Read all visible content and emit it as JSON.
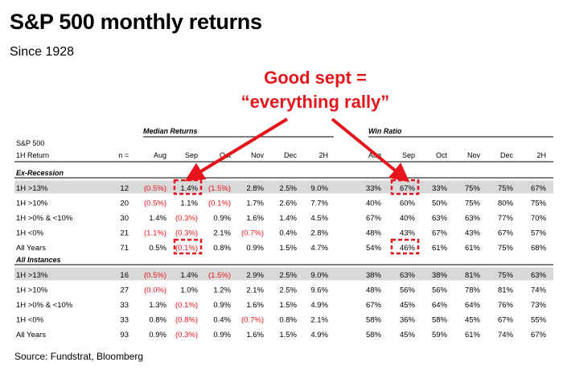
{
  "title": "S&P 500 monthly returns",
  "subtitle": "Since 1928",
  "callout": {
    "line1": "Good sept =",
    "line2": "“everything rally”"
  },
  "source": "Source: Fundstrat, Bloomberg",
  "colors": {
    "negative": "#e8141b",
    "highlight_row": "#d9d9d9",
    "accent": "#e8141b"
  },
  "chart_data": {
    "type": "table",
    "row_header_label": [
      "S&P 500",
      "1H Return"
    ],
    "n_label": "n =",
    "group_headers": {
      "median": "Median Returns",
      "win": "Win Ratio"
    },
    "median_columns": [
      "Aug",
      "Sep",
      "Oct",
      "Nov",
      "Dec",
      "2H"
    ],
    "win_columns": [
      "Aug",
      "Sep",
      "Oct",
      "Nov",
      "Dec",
      "2H"
    ],
    "sections": [
      {
        "name": "Ex-Recession",
        "rows": [
          {
            "label": "1H >13%",
            "n": "12",
            "shaded": true,
            "median": [
              "(0.5%)",
              "1.4%",
              "(1.5%)",
              "2.8%",
              "2.5%",
              "9.0%"
            ],
            "win": [
              "33%",
              "67%",
              "33%",
              "75%",
              "75%",
              "67%"
            ]
          },
          {
            "label": "1H >10%",
            "n": "20",
            "shaded": false,
            "median": [
              "(0.5%)",
              "1.1%",
              "(0.1%)",
              "1.7%",
              "2.6%",
              "7.7%"
            ],
            "win": [
              "40%",
              "60%",
              "50%",
              "75%",
              "80%",
              "75%"
            ]
          },
          {
            "label": "1H >0% & <10%",
            "n": "30",
            "shaded": false,
            "median": [
              "1.4%",
              "(0.3%)",
              "0.9%",
              "1.6%",
              "1.4%",
              "4.5%"
            ],
            "win": [
              "67%",
              "40%",
              "63%",
              "63%",
              "77%",
              "70%"
            ]
          },
          {
            "label": "1H <0%",
            "n": "21",
            "shaded": false,
            "median": [
              "(1.1%)",
              "(0.3%)",
              "2.1%",
              "(0.7%)",
              "0.4%",
              "2.8%"
            ],
            "win": [
              "48%",
              "43%",
              "67%",
              "43%",
              "67%",
              "57%"
            ]
          },
          {
            "label": "All Years",
            "n": "71",
            "shaded": false,
            "median": [
              "0.5%",
              "(0.1%)",
              "0.8%",
              "0.9%",
              "1.5%",
              "4.7%"
            ],
            "win": [
              "54%",
              "46%",
              "61%",
              "61%",
              "75%",
              "68%"
            ]
          }
        ]
      },
      {
        "name": "All Instances",
        "rows": [
          {
            "label": "1H >13%",
            "n": "16",
            "shaded": true,
            "median": [
              "(0.5%)",
              "1.4%",
              "(1.5%)",
              "2.9%",
              "2.5%",
              "9.0%"
            ],
            "win": [
              "38%",
              "63%",
              "38%",
              "81%",
              "75%",
              "63%"
            ]
          },
          {
            "label": "1H >10%",
            "n": "27",
            "shaded": false,
            "median": [
              "(0.0%)",
              "1.0%",
              "1.2%",
              "2.1%",
              "2.5%",
              "9.6%"
            ],
            "win": [
              "48%",
              "56%",
              "56%",
              "78%",
              "81%",
              "74%"
            ]
          },
          {
            "label": "1H >0% & <10%",
            "n": "33",
            "shaded": false,
            "median": [
              "1.3%",
              "(0.1%)",
              "0.9%",
              "1.6%",
              "1.5%",
              "4.9%"
            ],
            "win": [
              "67%",
              "45%",
              "64%",
              "64%",
              "76%",
              "73%"
            ]
          },
          {
            "label": "1H <0%",
            "n": "33",
            "shaded": false,
            "median": [
              "0.8%",
              "(0.8%)",
              "0.4%",
              "(0.7%)",
              "0.8%",
              "2.1%"
            ],
            "win": [
              "58%",
              "36%",
              "58%",
              "45%",
              "67%",
              "55%"
            ]
          },
          {
            "label": "All Years",
            "n": "93",
            "shaded": false,
            "median": [
              "0.9%",
              "(0.3%)",
              "0.9%",
              "1.6%",
              "1.5%",
              "4.9%"
            ],
            "win": [
              "58%",
              "45%",
              "59%",
              "61%",
              "74%",
              "67%"
            ]
          }
        ]
      }
    ],
    "highlighted_cells": [
      {
        "section": 0,
        "row": 0,
        "block": "median",
        "col": 1
      },
      {
        "section": 0,
        "row": 4,
        "block": "median",
        "col": 1
      },
      {
        "section": 0,
        "row": 0,
        "block": "win",
        "col": 1
      },
      {
        "section": 0,
        "row": 4,
        "block": "win",
        "col": 1
      }
    ]
  }
}
